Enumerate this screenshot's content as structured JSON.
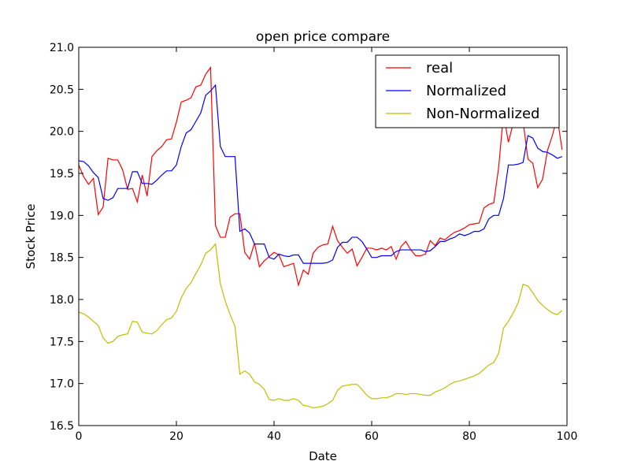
{
  "chart_data": {
    "type": "line",
    "title": "open price compare",
    "xlabel": "Date",
    "ylabel": "Stock Price",
    "xlim": [
      0,
      100
    ],
    "ylim": [
      16.5,
      21.0
    ],
    "x_ticks": [
      0,
      20,
      40,
      60,
      80,
      100
    ],
    "y_ticks": [
      16.5,
      17.0,
      17.5,
      18.0,
      18.5,
      19.0,
      19.5,
      20.0,
      20.5,
      21.0
    ],
    "x_tick_labels": [
      "0",
      "20",
      "40",
      "60",
      "80",
      "100"
    ],
    "y_tick_labels": [
      "16.5",
      "17.0",
      "17.5",
      "18.0",
      "18.5",
      "19.0",
      "19.5",
      "20.0",
      "20.5",
      "21.0"
    ],
    "grid": false,
    "legend_position": "top-right",
    "x": [
      0,
      1,
      2,
      3,
      4,
      5,
      6,
      7,
      8,
      9,
      10,
      11,
      12,
      13,
      14,
      15,
      16,
      17,
      18,
      19,
      20,
      21,
      22,
      23,
      24,
      25,
      26,
      27,
      28,
      29,
      30,
      31,
      32,
      33,
      34,
      35,
      36,
      37,
      38,
      39,
      40,
      41,
      42,
      43,
      44,
      45,
      46,
      47,
      48,
      49,
      50,
      51,
      52,
      53,
      54,
      55,
      56,
      57,
      58,
      59,
      60,
      61,
      62,
      63,
      64,
      65,
      66,
      67,
      68,
      69,
      70,
      71,
      72,
      73,
      74,
      75,
      76,
      77,
      78,
      79,
      80,
      81,
      82,
      83,
      84,
      85,
      86,
      87,
      88,
      89,
      90,
      91,
      92,
      93,
      94,
      95,
      96,
      97,
      98,
      99
    ],
    "series": [
      {
        "name": "real",
        "color": "#ff0000",
        "values": [
          19.6,
          19.46,
          19.37,
          19.44,
          19.01,
          19.1,
          19.68,
          19.66,
          19.66,
          19.54,
          19.31,
          19.32,
          19.16,
          19.48,
          19.23,
          19.7,
          19.77,
          19.82,
          19.9,
          19.91,
          20.11,
          20.35,
          20.37,
          20.4,
          20.53,
          20.55,
          20.68,
          20.76,
          18.88,
          18.74,
          18.74,
          18.98,
          19.02,
          19.02,
          18.56,
          18.48,
          18.67,
          18.39,
          18.46,
          18.51,
          18.56,
          18.53,
          18.39,
          18.41,
          18.43,
          18.17,
          18.35,
          18.3,
          18.55,
          18.62,
          18.65,
          18.66,
          18.87,
          18.7,
          18.62,
          18.55,
          18.6,
          18.4,
          18.5,
          18.61,
          18.61,
          18.59,
          18.61,
          18.59,
          18.63,
          18.48,
          18.63,
          18.69,
          18.59,
          18.52,
          18.52,
          18.54,
          18.7,
          18.64,
          18.73,
          18.71,
          18.76,
          18.8,
          18.82,
          18.85,
          18.89,
          18.9,
          18.91,
          19.09,
          19.13,
          19.15,
          19.57,
          20.21,
          19.87,
          20.1,
          20.1,
          20.12,
          19.67,
          19.62,
          19.33,
          19.43,
          19.77,
          19.95,
          20.17,
          19.78
        ]
      },
      {
        "name": "Normalized",
        "color": "#0000ff",
        "values": [
          19.65,
          19.64,
          19.59,
          19.51,
          19.45,
          19.2,
          19.18,
          19.21,
          19.32,
          19.32,
          19.32,
          19.52,
          19.52,
          19.38,
          19.38,
          19.37,
          19.42,
          19.48,
          19.53,
          19.53,
          19.6,
          19.82,
          19.98,
          20.02,
          20.12,
          20.22,
          20.43,
          20.48,
          20.55,
          19.82,
          19.7,
          19.7,
          19.7,
          18.81,
          18.84,
          18.79,
          18.66,
          18.66,
          18.66,
          18.5,
          18.48,
          18.54,
          18.52,
          18.51,
          18.53,
          18.53,
          18.43,
          18.43,
          18.43,
          18.43,
          18.43,
          18.44,
          18.47,
          18.62,
          18.68,
          18.68,
          18.74,
          18.74,
          18.69,
          18.6,
          18.5,
          18.5,
          18.52,
          18.52,
          18.52,
          18.57,
          18.59,
          18.59,
          18.59,
          18.59,
          18.59,
          18.57,
          18.58,
          18.63,
          18.69,
          18.69,
          18.72,
          18.74,
          18.78,
          18.76,
          18.78,
          18.81,
          18.81,
          18.84,
          18.96,
          19.0,
          19.0,
          19.2,
          19.6,
          19.6,
          19.61,
          19.63,
          19.95,
          19.92,
          19.8,
          19.76,
          19.75,
          19.72,
          19.68,
          19.7
        ]
      },
      {
        "name": "Non-Normalized",
        "color": "#bfbf00",
        "values": [
          17.85,
          17.83,
          17.79,
          17.74,
          17.69,
          17.54,
          17.48,
          17.5,
          17.56,
          17.58,
          17.59,
          17.74,
          17.73,
          17.61,
          17.6,
          17.59,
          17.63,
          17.7,
          17.76,
          17.78,
          17.86,
          18.02,
          18.13,
          18.2,
          18.31,
          18.41,
          18.55,
          18.59,
          18.66,
          18.19,
          17.98,
          17.82,
          17.68,
          17.11,
          17.15,
          17.11,
          17.02,
          16.99,
          16.93,
          16.81,
          16.8,
          16.82,
          16.8,
          16.8,
          16.82,
          16.8,
          16.74,
          16.73,
          16.71,
          16.72,
          16.73,
          16.76,
          16.8,
          16.92,
          16.97,
          16.98,
          16.99,
          16.99,
          16.93,
          16.86,
          16.82,
          16.82,
          16.83,
          16.83,
          16.85,
          16.88,
          16.88,
          16.87,
          16.88,
          16.88,
          16.87,
          16.86,
          16.86,
          16.9,
          16.92,
          16.95,
          16.99,
          17.02,
          17.03,
          17.05,
          17.07,
          17.09,
          17.12,
          17.17,
          17.22,
          17.25,
          17.36,
          17.66,
          17.74,
          17.84,
          17.96,
          18.18,
          18.16,
          18.08,
          17.99,
          17.93,
          17.88,
          17.84,
          17.82,
          17.87
        ]
      }
    ]
  }
}
